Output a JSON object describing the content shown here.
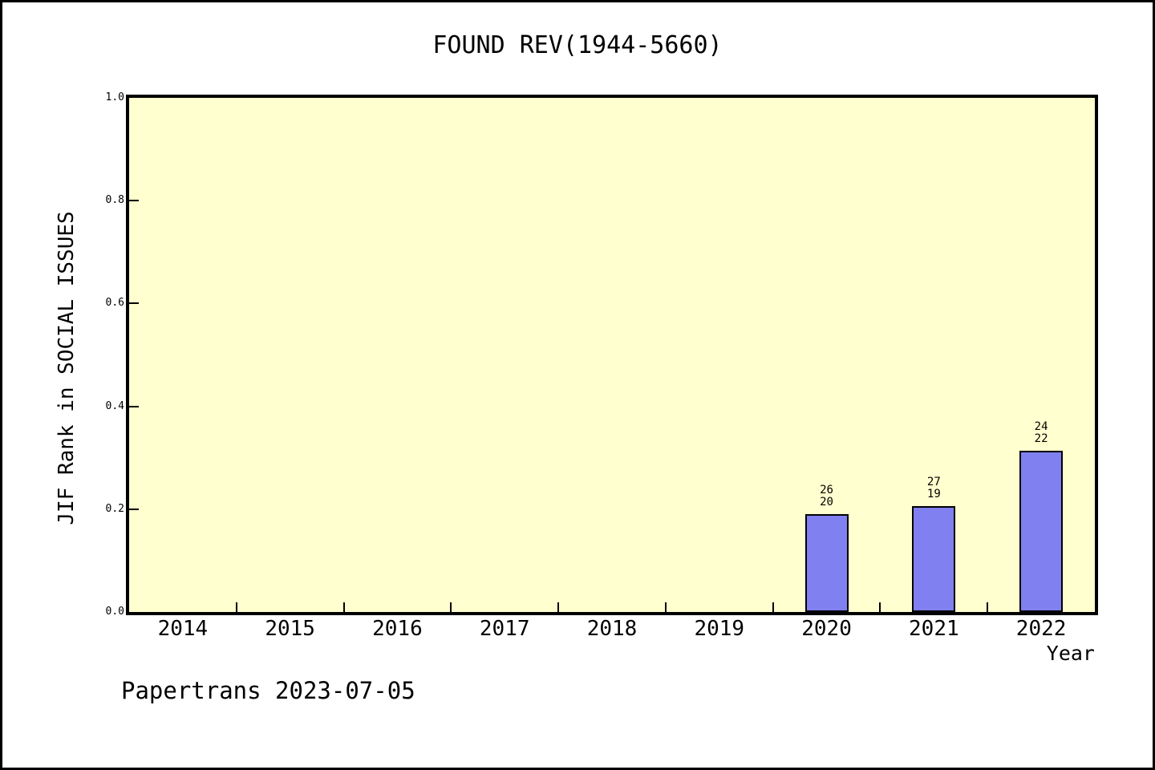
{
  "page": {
    "background": "#ffffff",
    "border_color": "#000000"
  },
  "chart_data": {
    "type": "bar",
    "title": "FOUND REV(1944-5660)",
    "xlabel": "Year",
    "ylabel": "JIF Rank in SOCIAL ISSUES",
    "footer": "Papertrans 2023-07-05",
    "categories": [
      "2014",
      "2015",
      "2016",
      "2017",
      "2018",
      "2019",
      "2020",
      "2021",
      "2022"
    ],
    "values": [
      null,
      null,
      null,
      null,
      null,
      null,
      0.19,
      0.206,
      0.314
    ],
    "bar_labels": [
      null,
      null,
      null,
      null,
      null,
      null,
      [
        "26",
        "20"
      ],
      [
        "27",
        "19"
      ],
      [
        "24",
        "22"
      ]
    ],
    "ylim": [
      0,
      1
    ],
    "yticks": [
      "1.0",
      "0.8",
      "0.6",
      "0.4",
      "0.2",
      "0.0"
    ],
    "grid": false,
    "legend": null,
    "plot_bg": "#ffffcf",
    "bar_fill": "#8080f0",
    "bar_edge": "#000000",
    "axis_color": "#000000"
  }
}
